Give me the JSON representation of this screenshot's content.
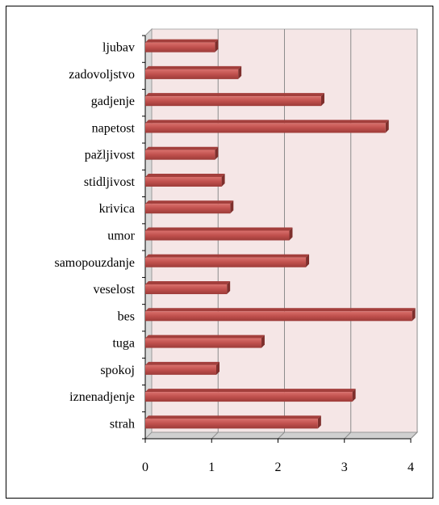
{
  "chart_data": {
    "type": "bar",
    "orientation": "horizontal",
    "style": "3d",
    "categories": [
      "ljubav",
      "zadovoljstvo",
      "gadjenje",
      "napetost",
      "pažljivost",
      "stidljivost",
      "krivica",
      "umor",
      "samopouzdanje",
      "veselost",
      "bes",
      "tuga",
      "spokoj",
      "iznenadjenje",
      "strah"
    ],
    "values": [
      1.05,
      1.4,
      2.65,
      3.62,
      1.05,
      1.15,
      1.28,
      2.17,
      2.42,
      1.23,
      4.02,
      1.75,
      1.07,
      3.12,
      2.6
    ],
    "xlim": [
      0,
      4
    ],
    "xticks": [
      "0",
      "1",
      "2",
      "3",
      "4"
    ],
    "grid": true,
    "bar_color": "#c0504d",
    "plot_background": "#f5e6e6"
  }
}
